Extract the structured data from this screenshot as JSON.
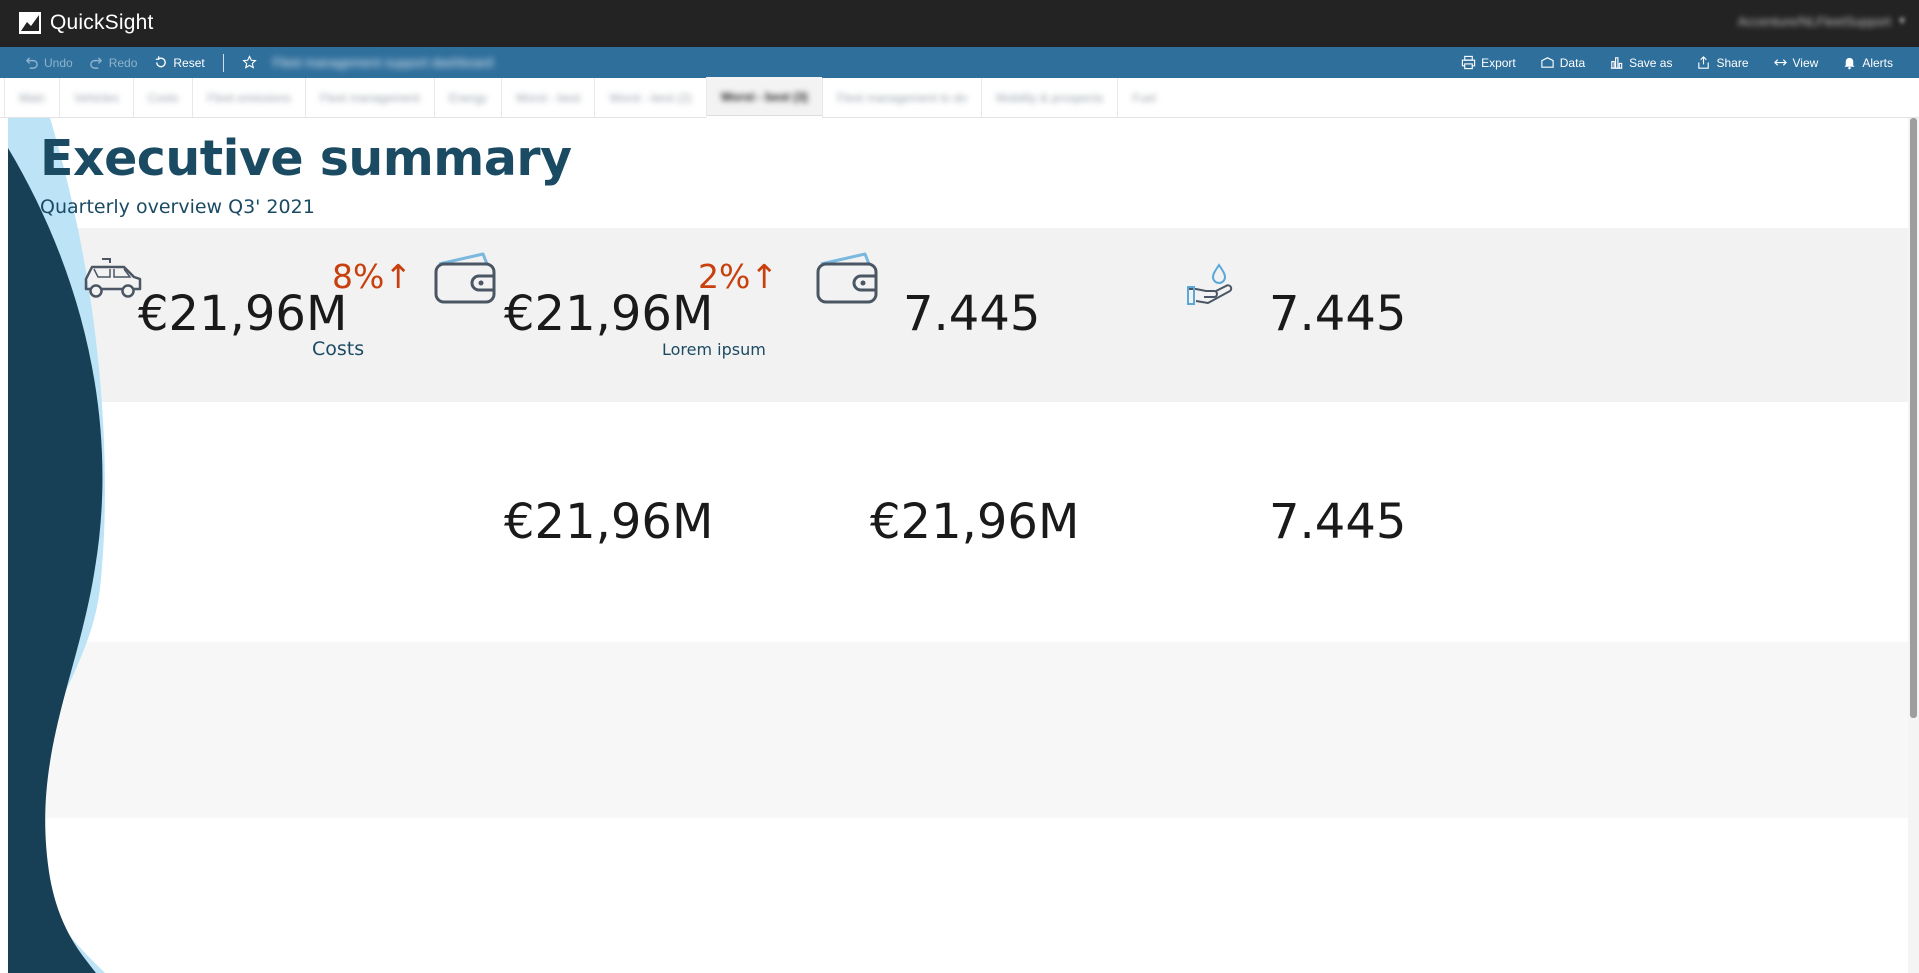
{
  "app": {
    "name": "QuickSight",
    "user": "Accenture/NLFleetSupport"
  },
  "toolbar": {
    "undo": "Undo",
    "redo": "Redo",
    "reset": "Reset",
    "dashboard_name": "Fleet management support dashboard",
    "export": "Export",
    "data": "Data",
    "save_as": "Save as",
    "share": "Share",
    "view": "View",
    "alerts": "Alerts"
  },
  "tabs": [
    {
      "label": "Main"
    },
    {
      "label": "Vehicles"
    },
    {
      "label": "Costs"
    },
    {
      "label": "Fleet emissions"
    },
    {
      "label": "Fleet management"
    },
    {
      "label": "Energy"
    },
    {
      "label": "Worst - best"
    },
    {
      "label": "Worst - best (2)"
    },
    {
      "label": "Worst - best (3)"
    },
    {
      "label": "Fleet management to do"
    },
    {
      "label": "Mobility & prospects"
    },
    {
      "label": "Fuel"
    }
  ],
  "sheet": {
    "title": "Executive summary",
    "subtitle": "Quarterly overview Q3' 2021"
  },
  "row1": {
    "kpi1": {
      "value": "€21,96M",
      "change": "8%↑",
      "label": "Costs",
      "icon": "car-icon"
    },
    "kpi2": {
      "value": "€21,96M",
      "change": "2%↑",
      "label": "Lorem ipsum",
      "icon": "wallet-icon"
    },
    "kpi3": {
      "value": "7.445",
      "icon": "wallet-icon"
    },
    "kpi4": {
      "value": "7.445",
      "icon": "hand-water-drop-icon"
    }
  },
  "row2": {
    "kpi1": {
      "value": "€21,96M"
    },
    "kpi2": {
      "value": "€21,96M"
    },
    "kpi3": {
      "value": "7.445"
    }
  },
  "colors": {
    "topbar": "#232323",
    "toolbar": "#2f6f9c",
    "title": "#1b4a63",
    "change_up": "#c9400f",
    "wave_dark": "#173f55",
    "wave_light": "#bde3f7"
  }
}
